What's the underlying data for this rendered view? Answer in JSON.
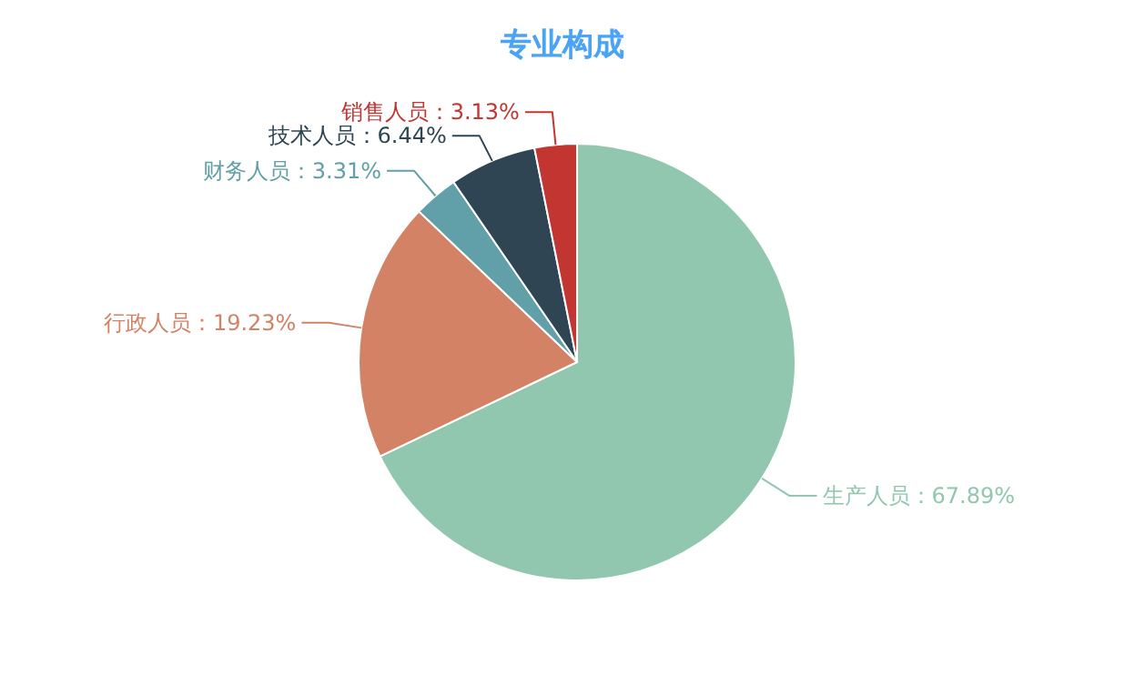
{
  "chart_data": {
    "type": "pie",
    "title": "专业构成",
    "categories": [
      "生产人员",
      "行政人员",
      "财务人员",
      "技术人员",
      "销售人员"
    ],
    "values": [
      67.89,
      19.23,
      3.31,
      6.44,
      3.13
    ],
    "value_labels": [
      "67.89%",
      "19.23%",
      "3.31%",
      "6.44%",
      "3.13%"
    ],
    "colors": [
      "#91c7ae",
      "#d48265",
      "#61a0a8",
      "#2f4554",
      "#c23531"
    ]
  }
}
